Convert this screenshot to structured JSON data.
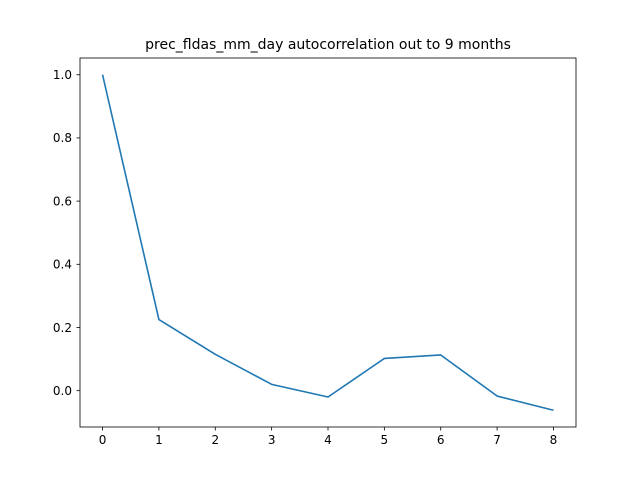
{
  "chart_data": {
    "type": "line",
    "title": "prec_fldas_mm_day autocorrelation out to 9 months",
    "xlabel": "",
    "ylabel": "",
    "x": [
      0,
      1,
      2,
      3,
      4,
      5,
      6,
      7,
      8
    ],
    "series": [
      {
        "values": [
          1.0,
          0.225,
          0.115,
          0.02,
          -0.02,
          0.102,
          0.113,
          -0.017,
          -0.062
        ],
        "color": "#1f77b4"
      }
    ],
    "xticks": [
      "0",
      "1",
      "2",
      "3",
      "4",
      "5",
      "6",
      "7",
      "8"
    ],
    "yticks": [
      "0.0",
      "0.2",
      "0.4",
      "0.6",
      "0.8",
      "1.0"
    ],
    "xlim": [
      -0.4,
      8.4
    ],
    "ylim": [
      -0.115,
      1.053
    ],
    "grid": false,
    "legend": "none"
  }
}
